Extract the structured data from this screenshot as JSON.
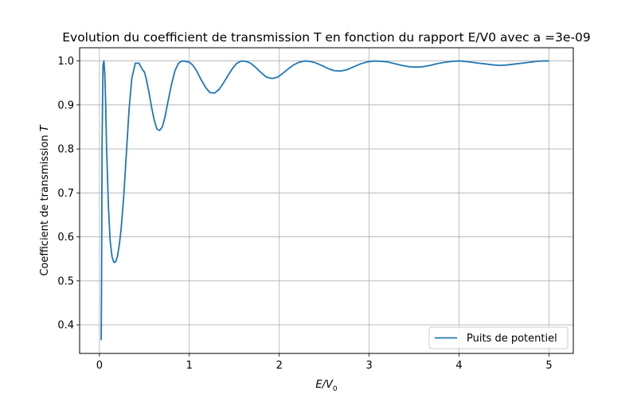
{
  "chart_data": {
    "type": "line",
    "title": "Evolution du coefficient de transmission T en fonction du rapport E/V0 avec a =3e-09",
    "xlabel_main": "E/V",
    "xlabel_sub": "0",
    "ylabel_main": "Coefficient de transmission ",
    "ylabel_var": "T",
    "xlim": [
      -0.22,
      5.27
    ],
    "ylim": [
      0.335,
      1.03
    ],
    "xticks": [
      0,
      1,
      2,
      3,
      4,
      5
    ],
    "xtick_labels": [
      "0",
      "1",
      "2",
      "3",
      "4",
      "5"
    ],
    "yticks": [
      0.4,
      0.5,
      0.6,
      0.7,
      0.8,
      0.9,
      1.0
    ],
    "ytick_labels": [
      "0.4",
      "0.5",
      "0.6",
      "0.7",
      "0.8",
      "0.9",
      "1.0"
    ],
    "grid": true,
    "legend_position": "bottom-right",
    "series": [
      {
        "name": "Puits de potentiel",
        "color": "#1f77b4",
        "x": [
          0.02,
          0.024,
          0.03,
          0.04,
          0.05,
          0.06,
          0.07,
          0.08,
          0.1,
          0.12,
          0.14,
          0.16,
          0.18,
          0.2,
          0.22,
          0.24,
          0.27,
          0.3,
          0.33,
          0.36,
          0.4,
          0.44,
          0.48,
          0.5,
          0.52,
          0.55,
          0.58,
          0.61,
          0.64,
          0.67,
          0.7,
          0.73,
          0.76,
          0.8,
          0.84,
          0.88,
          0.92,
          0.96,
          1.0,
          1.04,
          1.08,
          1.13,
          1.18,
          1.23,
          1.28,
          1.33,
          1.38,
          1.43,
          1.48,
          1.53,
          1.58,
          1.63,
          1.68,
          1.74,
          1.8,
          1.86,
          1.92,
          1.98,
          2.04,
          2.1,
          2.16,
          2.22,
          2.28,
          2.34,
          2.4,
          2.47,
          2.54,
          2.61,
          2.68,
          2.75,
          2.82,
          2.9,
          2.98,
          3.06,
          3.14,
          3.2,
          3.28,
          3.36,
          3.44,
          3.52,
          3.6,
          3.68,
          3.76,
          3.84,
          3.92,
          4.0,
          4.06,
          4.14,
          4.22,
          4.3,
          4.38,
          4.46,
          4.54,
          4.62,
          4.7,
          4.78,
          4.86,
          4.93,
          5.0
        ],
        "y": [
          0.365,
          0.5,
          0.82,
          0.99,
          1.0,
          0.97,
          0.9,
          0.8,
          0.67,
          0.59,
          0.555,
          0.542,
          0.543,
          0.555,
          0.58,
          0.615,
          0.69,
          0.79,
          0.89,
          0.96,
          0.995,
          0.995,
          0.98,
          0.975,
          0.96,
          0.93,
          0.895,
          0.865,
          0.845,
          0.842,
          0.85,
          0.873,
          0.905,
          0.945,
          0.978,
          0.995,
          1.0,
          0.999,
          0.997,
          0.99,
          0.978,
          0.958,
          0.94,
          0.928,
          0.927,
          0.935,
          0.95,
          0.967,
          0.983,
          0.995,
          1.0,
          0.999,
          0.995,
          0.985,
          0.973,
          0.963,
          0.96,
          0.963,
          0.972,
          0.982,
          0.991,
          0.997,
          1.0,
          0.999,
          0.996,
          0.99,
          0.983,
          0.978,
          0.977,
          0.98,
          0.986,
          0.993,
          0.998,
          1.0,
          0.999,
          0.998,
          0.994,
          0.99,
          0.987,
          0.986,
          0.987,
          0.99,
          0.994,
          0.997,
          0.999,
          1.0,
          0.999,
          0.997,
          0.995,
          0.993,
          0.991,
          0.99,
          0.991,
          0.993,
          0.995,
          0.997,
          0.999,
          1.0,
          1.0
        ]
      }
    ]
  }
}
